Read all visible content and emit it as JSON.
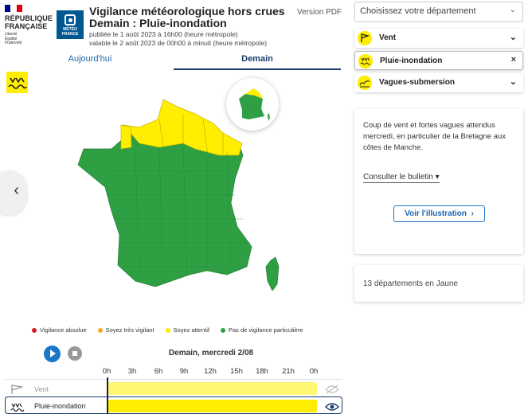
{
  "header": {
    "rf_lines": [
      "RÉPUBLIQUE",
      "FRANÇAISE"
    ],
    "rf_motto": [
      "Liberté",
      "Égalité",
      "Fraternité"
    ],
    "mf_logo": "MÉTÉO FRANCE",
    "title_line1": "Vigilance météorologique hors crues",
    "title_line2": "Demain : Pluie-inondation",
    "published": "publiée le 1 août 2023 à 16h00 (heure métropole)",
    "valid": "valable le 2 août 2023 de 00h00 à minuit (heure métropole)",
    "pdf_link": "Version PDF"
  },
  "tabs": [
    {
      "label": "Aujourd'hui",
      "active": false
    },
    {
      "label": "Demain",
      "active": true
    }
  ],
  "map": {
    "icon": "rain-flood-icon",
    "colors": {
      "green": "#2ea043",
      "yellow": "#ffee00"
    }
  },
  "legend": [
    {
      "label": "Vigilance absolue",
      "color": "#d61a1a"
    },
    {
      "label": "Soyez très vigilant",
      "color": "#f5a623"
    },
    {
      "label": "Soyez attentif",
      "color": "#ffe600"
    },
    {
      "label": "Pas de vigilance particulière",
      "color": "#2ea043"
    }
  ],
  "timeline": {
    "date": "Demain, mercredi 2/08",
    "hours": [
      "0h",
      "3h",
      "6h",
      "9h",
      "12h",
      "15h",
      "18h",
      "21h",
      "0h"
    ],
    "rows": [
      {
        "label": "Vent",
        "icon": "wind-flag-icon",
        "color": "#ffee00"
      },
      {
        "label": "Pluie-inondation",
        "icon": "rain-flood-icon",
        "color": "#ffee00"
      }
    ]
  },
  "sidebar": {
    "department_placeholder": "Choisissez votre département",
    "phenomena": [
      {
        "label": "Vent",
        "icon": "wind-flag-icon",
        "action": "chevron-down-icon"
      },
      {
        "label": "Pluie-inondation",
        "icon": "rain-flood-icon",
        "action": "close-icon"
      },
      {
        "label": "Vagues-submersion",
        "icon": "waves-icon",
        "action": "chevron-down-icon"
      }
    ],
    "description": "Coup de vent et fortes vagues attendus mercredi, en particulier de la Bretagne aux côtes de Manche.",
    "consult_label": "Consulter le bulletin",
    "illustration_label": "Voir l'illustration",
    "count_label": "13 départements en Jaune"
  }
}
